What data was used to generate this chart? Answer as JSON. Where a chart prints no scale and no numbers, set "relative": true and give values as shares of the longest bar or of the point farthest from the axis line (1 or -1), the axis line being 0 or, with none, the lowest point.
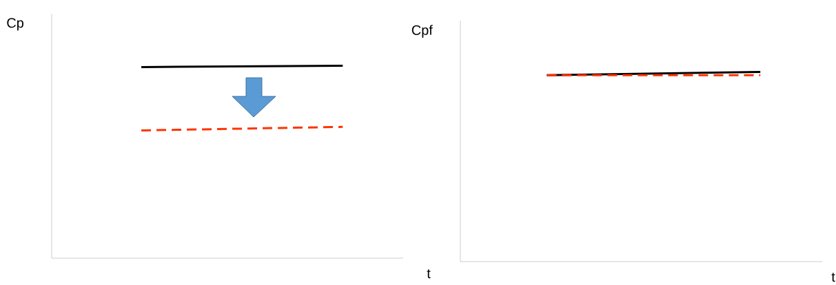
{
  "chart_data": [
    {
      "type": "line",
      "relative": true,
      "ylabel": "Cp",
      "xlabel": "t",
      "categories": [
        null,
        null
      ],
      "tick_labels": false,
      "series": [
        {
          "color": "#000000",
          "line_style": "solid",
          "values": [
            0.993,
            1
          ]
        },
        {
          "color": "#ff3300",
          "line_style": "dashed",
          "values": [
            0.664,
            0.682
          ]
        }
      ]
    },
    {
      "type": "line",
      "relative": true,
      "ylabel": "Cpf",
      "xlabel": "t",
      "categories": [
        null,
        null
      ],
      "tick_labels": false,
      "series": [
        {
          "color": "#000000",
          "line_style": "solid",
          "values": [
            0.982,
            1
          ]
        },
        {
          "color": "#ff3300",
          "line_style": "dashed",
          "values": [
            0.982,
            0.982
          ]
        }
      ]
    }
  ]
}
